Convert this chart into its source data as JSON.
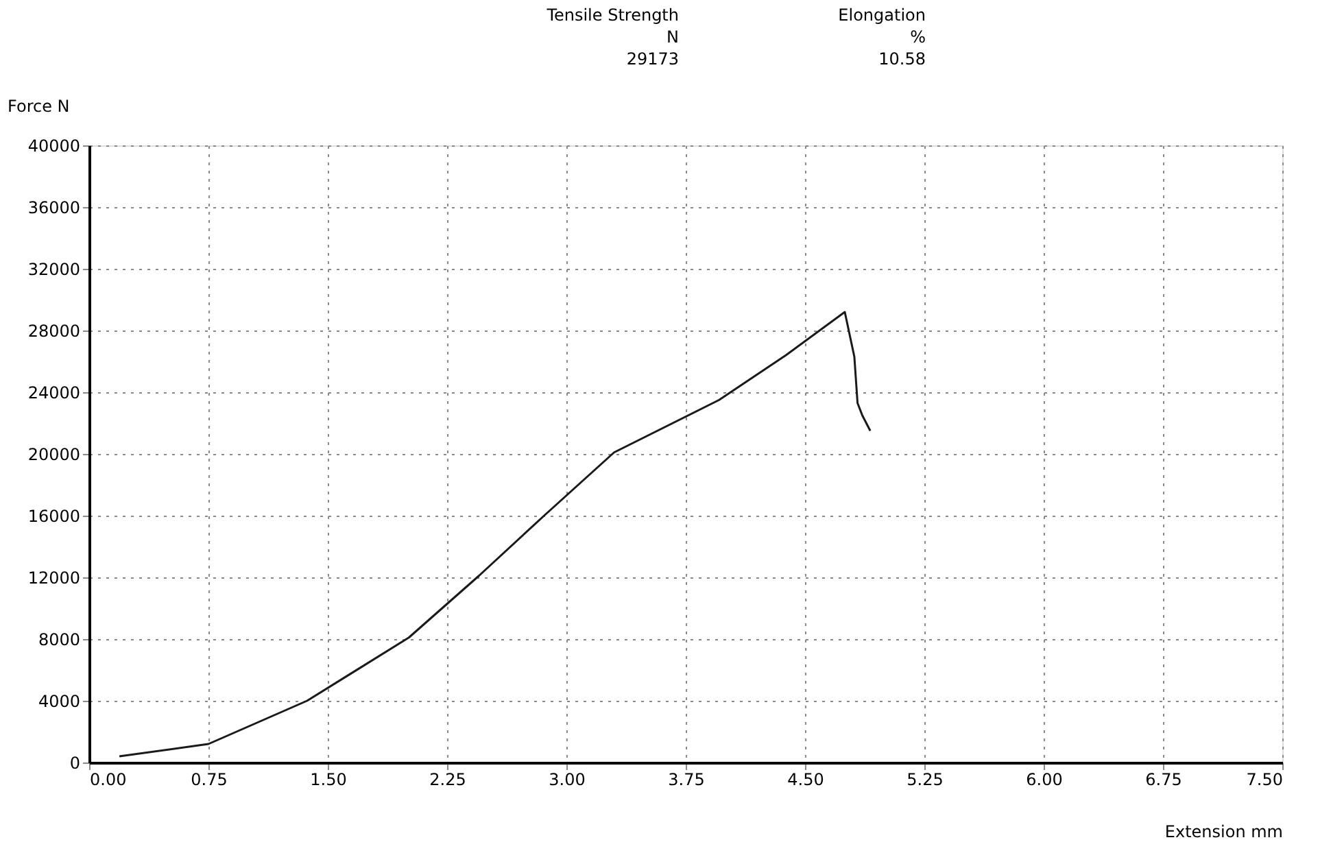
{
  "chart_data": {
    "type": "line",
    "xlabel": "Extension mm",
    "ylabel": "Force N",
    "annotations": [
      "Tensile Strength",
      "N",
      "29173",
      "Elongation",
      "%",
      "10.58"
    ],
    "x": [
      0.19,
      0.75,
      1.37,
      2.01,
      2.45,
      2.86,
      3.3,
      3.96,
      4.38,
      4.75,
      4.81,
      4.83,
      4.86,
      4.91
    ],
    "series": [
      {
        "color": "#1a1a1a",
        "values": [
          400,
          1200,
          4000,
          8100,
          12100,
          16000,
          20100,
          23500,
          26400,
          29200,
          26300,
          23300,
          22500,
          21500
        ]
      }
    ],
    "xlim": [
      0,
      7.5
    ],
    "xticks": [
      {
        "value": 0,
        "label": "0.00"
      },
      0.75,
      {
        "value": 1.5,
        "label": "1.50"
      },
      2.25,
      {
        "value": 3,
        "label": "3.00"
      },
      3.75,
      {
        "value": 4.5,
        "label": "4.50"
      },
      5.25,
      {
        "value": 6,
        "label": "6.00"
      },
      6.75,
      {
        "value": 7.5,
        "label": "7.50"
      }
    ],
    "ylim": [
      0,
      40000
    ],
    "yticks": [
      0,
      4000,
      8000,
      12000,
      16000,
      20000,
      24000,
      28000,
      32000,
      36000,
      40000
    ],
    "grid": true,
    "marker": "none",
    "line_style": "solid"
  }
}
